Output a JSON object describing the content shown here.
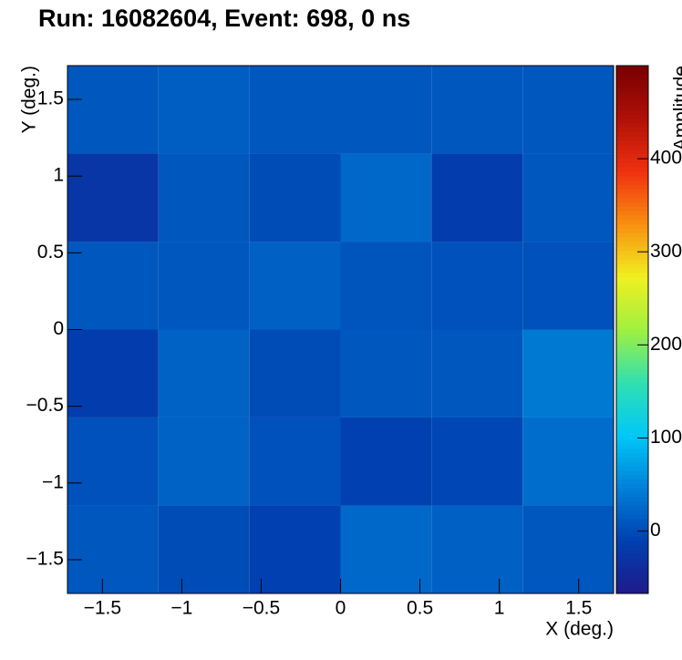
{
  "chart_data": {
    "type": "heatmap",
    "title": "Run: 16082604, Event: 698, 0 ns",
    "x_label": "X (deg.)",
    "y_label": "Y (deg.)",
    "z_label": "Amplitude",
    "xbins": [
      -1.72,
      -1.147,
      -0.573,
      0,
      0.573,
      1.147,
      1.72
    ],
    "ybins": [
      -1.72,
      -1.147,
      -0.573,
      0,
      0.573,
      1.147,
      1.72
    ],
    "z": [
      [
        10,
        0,
        -10,
        25,
        18,
        10
      ],
      [
        5,
        20,
        5,
        -10,
        -5,
        30
      ],
      [
        -15,
        20,
        0,
        10,
        10,
        40
      ],
      [
        10,
        10,
        18,
        8,
        5,
        5
      ],
      [
        -25,
        10,
        0,
        25,
        -15,
        10
      ],
      [
        10,
        15,
        10,
        10,
        10,
        10
      ]
    ],
    "xlim": [
      -1.72,
      1.72
    ],
    "ylim": [
      -1.72,
      1.72
    ],
    "zlim": [
      -67,
      500
    ],
    "xticks": [
      {
        "value": -1.5,
        "label": "−1.5"
      },
      {
        "value": -1,
        "label": "−1"
      },
      {
        "value": -0.5,
        "label": "−0.5"
      },
      0,
      0.5,
      1,
      1.5
    ],
    "yticks": [
      {
        "value": -1.5,
        "label": "−1.5"
      },
      {
        "value": -1,
        "label": "−1"
      },
      {
        "value": -0.5,
        "label": "−0.5"
      },
      0,
      0.5,
      1,
      1.5
    ],
    "zticks": [
      0,
      100,
      200,
      300,
      400
    ],
    "colorscale": [
      "#1f1a8a",
      "#0040b0",
      "#0080d8",
      "#00c8f8",
      "#30e0b0",
      "#a0f040",
      "#f0f020",
      "#f89010",
      "#f03010",
      "#b01008",
      "#780000"
    ]
  }
}
